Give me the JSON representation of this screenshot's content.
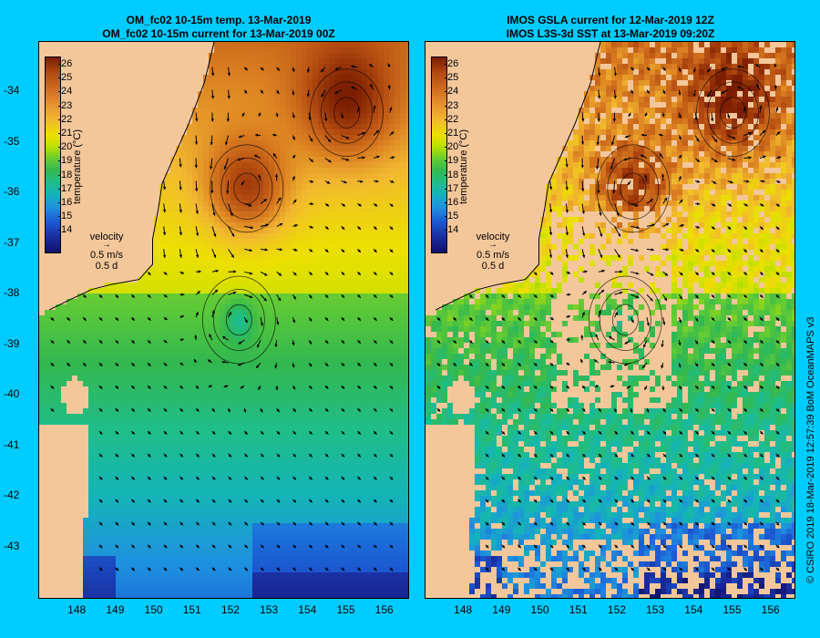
{
  "left_panel": {
    "title_line1": "OM_fc02 10-15m temp. 13-Mar-2019",
    "title_line2": "OM_fc02 10-15m current for 13-Mar-2019 00Z",
    "colorbar_label": "temperature (°C)",
    "velocity_key": {
      "label": "velocity",
      "speed": "0.5 m/s",
      "duration": "0.5 d"
    }
  },
  "right_panel": {
    "title_line1": "IMOS GSLA current for 12-Mar-2019 12Z",
    "title_line2": "IMOS L3S-3d SST at 13-Mar-2019 09:20Z",
    "colorbar_label": "temperature (°C)",
    "velocity_key": {
      "label": "velocity",
      "speed": "0.5 m/s",
      "duration": "0.5 d"
    }
  },
  "colorbar_ticks": [
    "26",
    "25",
    "24",
    "23",
    "22",
    "21",
    "20",
    "19",
    "18",
    "17",
    "16",
    "15",
    "14"
  ],
  "x_ticks": [
    "148",
    "149",
    "150",
    "151",
    "152",
    "153",
    "154",
    "155",
    "156"
  ],
  "y_ticks": [
    "-34",
    "-35",
    "-36",
    "-37",
    "-38",
    "-39",
    "-40",
    "-41",
    "-42",
    "-43"
  ],
  "credit": "© CSIRO 2019   18-Mar-2019 12:57:39 BoM OceanMAPS v3",
  "colors": {
    "background": "#00ccff",
    "land": "#f4c79b"
  },
  "map_data": {
    "lon_range": [
      147.0,
      156.6
    ],
    "lat_range": [
      -44.0,
      -33.0
    ],
    "eddies": [
      {
        "lon": 152.4,
        "lat": -35.9,
        "direction": "anticyclonic"
      },
      {
        "lon": 152.2,
        "lat": -38.5,
        "direction": "cyclonic"
      },
      {
        "lon": 155.0,
        "lat": -34.4,
        "direction": "anticyclonic"
      }
    ]
  }
}
